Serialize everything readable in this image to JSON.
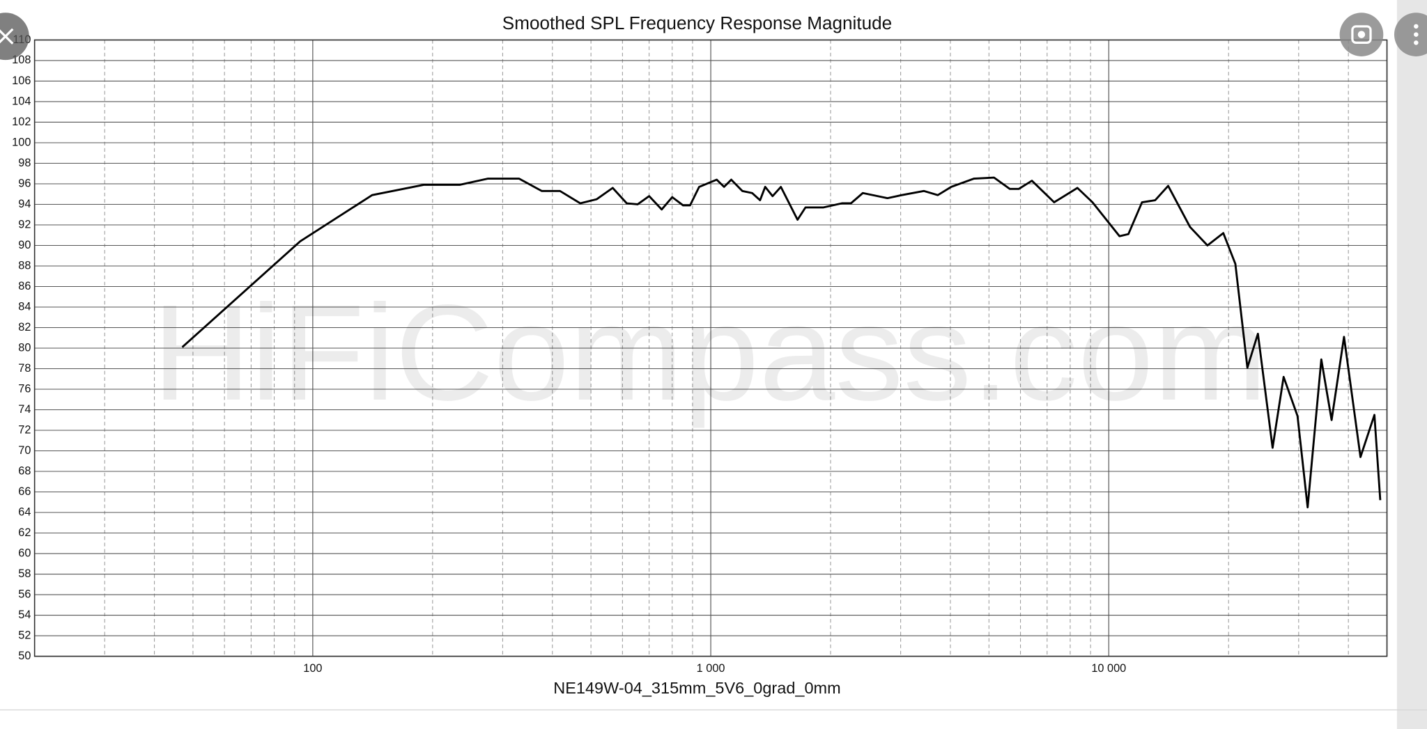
{
  "chart_data": {
    "type": "line",
    "title": "Smoothed SPL Frequency Response Magnitude",
    "x_label": "NE149W-04_315mm_5V6_0grad_0mm",
    "watermark": "HiFiCompass.com",
    "log_x": true,
    "grid": true,
    "xlim": [
      20,
      50000
    ],
    "xticks": [
      100,
      {
        "value": 1000,
        "label": "1 000"
      },
      {
        "value": 10000,
        "label": "10 000"
      }
    ],
    "xminor": [
      30,
      40,
      50,
      60,
      70,
      80,
      90,
      200,
      300,
      400,
      500,
      600,
      700,
      800,
      900,
      2000,
      3000,
      4000,
      5000,
      6000,
      7000,
      8000,
      9000,
      20000,
      30000,
      40000
    ],
    "ylim": [
      50,
      110
    ],
    "yticks": [
      50,
      52,
      54,
      56,
      58,
      60,
      62,
      64,
      66,
      68,
      70,
      72,
      74,
      76,
      78,
      80,
      82,
      84,
      86,
      88,
      90,
      92,
      94,
      96,
      98,
      100,
      102,
      104,
      106,
      108,
      110
    ],
    "x": [
      47,
      93,
      141,
      190,
      234,
      275,
      330,
      376,
      418,
      470,
      517,
      567,
      615,
      655,
      700,
      753,
      800,
      852,
      887,
      935,
      1035,
      1080,
      1126,
      1200,
      1270,
      1330,
      1370,
      1430,
      1500,
      1652,
      1730,
      1920,
      2135,
      2250,
      2410,
      2780,
      3020,
      3430,
      3720,
      4020,
      4580,
      5150,
      5640,
      5940,
      6410,
      7290,
      8340,
      9100,
      10640,
      11200,
      12120,
      13080,
      14100,
      16000,
      17700,
      19400,
      20800,
      22300,
      23700,
      25800,
      27500,
      29800,
      31600,
      34200,
      36300,
      39000,
      42900,
      46500,
      48100
    ],
    "series": [
      {
        "color": "#000000",
        "values": [
          80.1,
          90.4,
          94.9,
          95.9,
          95.9,
          96.5,
          96.5,
          95.3,
          95.3,
          94.1,
          94.5,
          95.6,
          94.1,
          94.0,
          94.8,
          93.5,
          94.7,
          93.9,
          93.9,
          95.7,
          96.4,
          95.7,
          96.4,
          95.3,
          95.1,
          94.4,
          95.7,
          94.8,
          95.7,
          92.5,
          93.7,
          93.7,
          94.1,
          94.1,
          95.1,
          94.6,
          94.9,
          95.3,
          94.9,
          95.7,
          96.5,
          96.6,
          95.5,
          95.5,
          96.3,
          94.2,
          95.6,
          94.2,
          90.9,
          91.1,
          94.2,
          94.4,
          95.8,
          91.8,
          90.0,
          91.2,
          88.2,
          78.1,
          81.4,
          70.3,
          77.2,
          73.4,
          64.5,
          78.9,
          73.0,
          81.1,
          69.4,
          73.5,
          65.2
        ]
      }
    ]
  }
}
